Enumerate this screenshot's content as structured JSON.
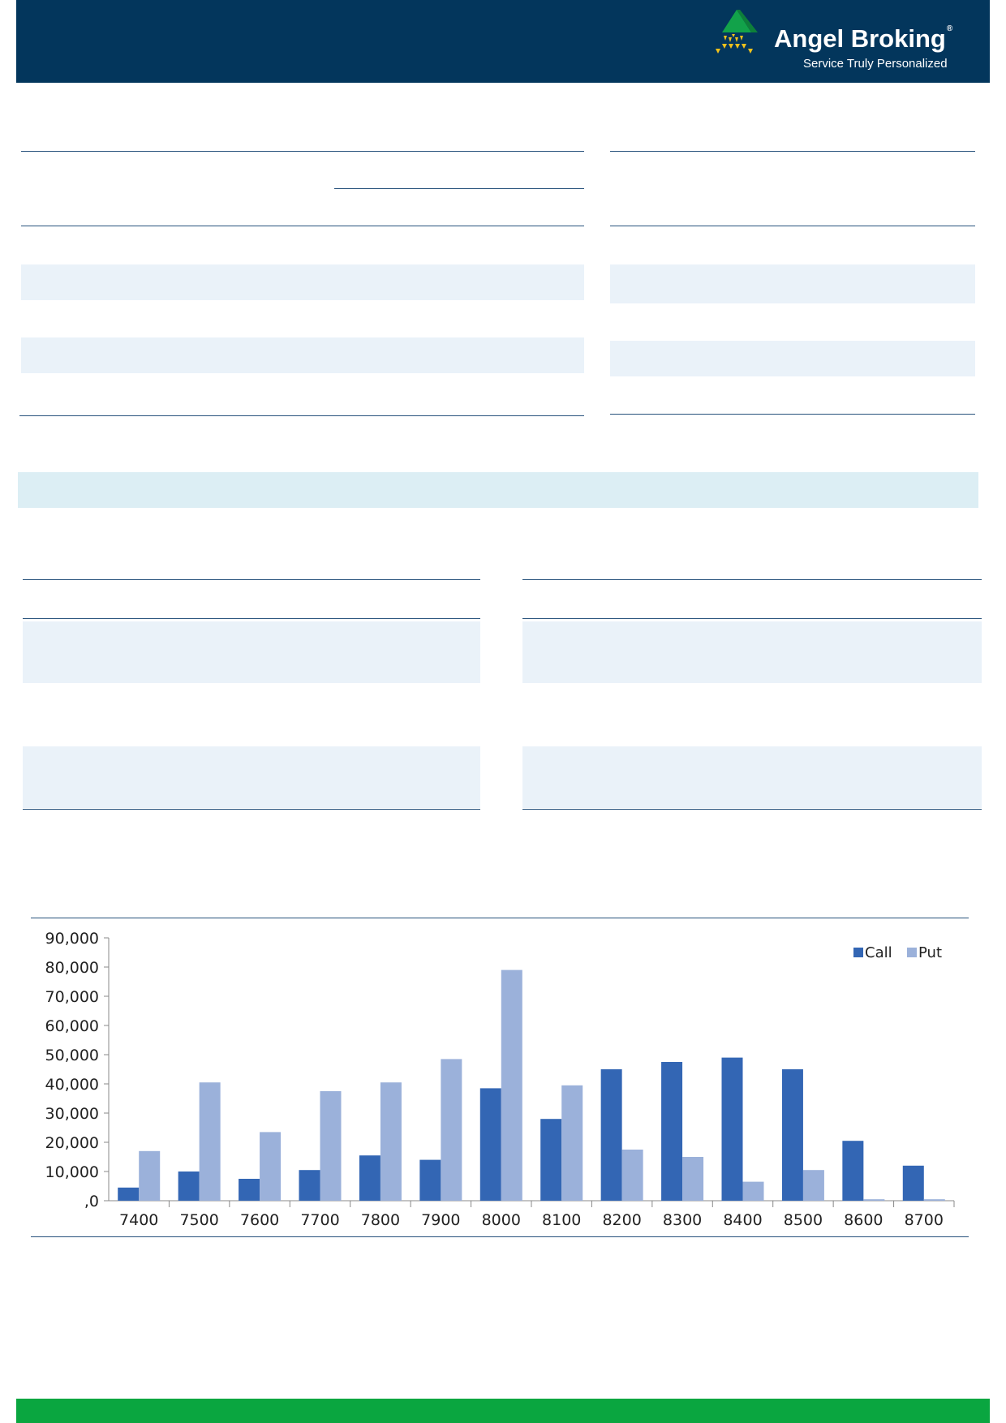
{
  "brand": {
    "name": "Angel Broking",
    "registered_mark": "®",
    "tagline": "Service Truly Personalized",
    "colors": {
      "header": "#03365c",
      "footer": "#0aa640",
      "logo_green": "#12a24a",
      "logo_yellow": "#f2c21b"
    }
  },
  "chart_data": {
    "type": "bar",
    "categories": [
      "7400",
      "7500",
      "7600",
      "7700",
      "7800",
      "7900",
      "8000",
      "8100",
      "8200",
      "8300",
      "8400",
      "8500",
      "8600",
      "8700"
    ],
    "series": [
      {
        "name": "Call",
        "color": "#3366b4",
        "values": [
          4500,
          10000,
          7500,
          10500,
          15500,
          14000,
          38500,
          28000,
          45000,
          47500,
          49000,
          45000,
          20500,
          12000
        ]
      },
      {
        "name": "Put",
        "color": "#9bb1da",
        "values": [
          17000,
          40500,
          23500,
          37500,
          40500,
          48500,
          79000,
          39500,
          17500,
          15000,
          6500,
          10500,
          500,
          500
        ]
      }
    ],
    "yticks": [
      "90,000",
      "80,000",
      "70,000",
      "60,000",
      "50,000",
      "40,000",
      "30,000",
      "20,000",
      "10,000",
      ",0"
    ],
    "ylim": [
      0,
      90000
    ],
    "legend_position": "top-right",
    "grid": false
  }
}
